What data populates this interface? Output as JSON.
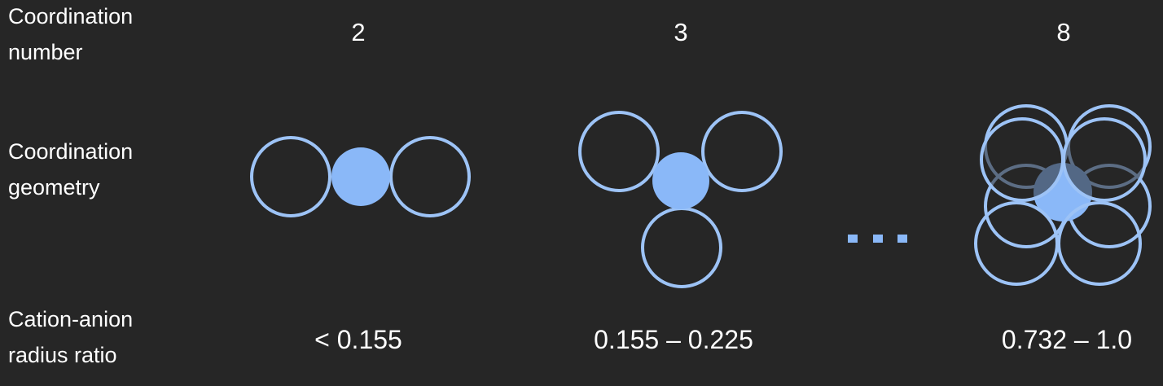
{
  "row_labels": {
    "coordination_number": [
      "Coordination",
      "number"
    ],
    "coordination_geometry": [
      "Coordination",
      "geometry"
    ],
    "radius_ratio": [
      "Cation-anion",
      "radius ratio"
    ]
  },
  "columns": [
    {
      "coordination_number": "2",
      "radius_ratio": "< 0.155"
    },
    {
      "coordination_number": "3",
      "radius_ratio": "0.155 – 0.225"
    },
    {
      "coordination_number": "8",
      "radius_ratio": "0.732 – 1.0"
    }
  ],
  "colors": {
    "background": "#262626",
    "anion_outline": "#9dc3f6",
    "cation_fill": "#8ab8f8",
    "text": "#ffffff"
  }
}
